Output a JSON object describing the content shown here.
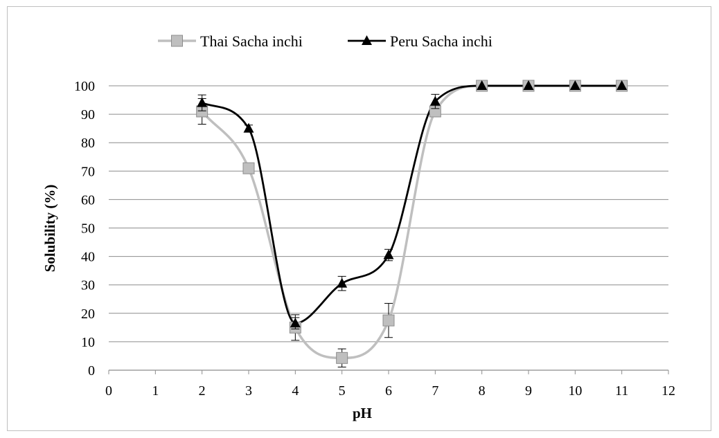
{
  "chart_data": {
    "type": "line",
    "title": "",
    "xlabel": "pH",
    "ylabel": "Solubility  (%)",
    "xlim": [
      0,
      12
    ],
    "ylim": [
      0,
      100
    ],
    "x_ticks": [
      0,
      1,
      2,
      3,
      4,
      5,
      6,
      7,
      8,
      9,
      10,
      11,
      12
    ],
    "y_ticks": [
      0,
      10,
      20,
      30,
      40,
      50,
      60,
      70,
      80,
      90,
      100
    ],
    "grid": "horizontal",
    "legend_position": "top",
    "smoothed": true,
    "series": [
      {
        "name": "Thai Sacha inchi",
        "color": "#bfbfbf",
        "marker": "square",
        "x": [
          2,
          3,
          4,
          5,
          6,
          7,
          8,
          9,
          10,
          11
        ],
        "values": [
          91,
          71,
          15,
          4.3,
          17.5,
          91,
          100,
          100,
          100,
          100
        ],
        "error": [
          4.5,
          0,
          4.5,
          3.2,
          6,
          0,
          0,
          0,
          0,
          0
        ]
      },
      {
        "name": "Peru Sacha inchi",
        "color": "#000000",
        "marker": "triangle",
        "x": [
          2,
          3,
          4,
          5,
          6,
          7,
          8,
          9,
          10,
          11
        ],
        "values": [
          94,
          85,
          16.5,
          30.5,
          40.5,
          94.5,
          100,
          100,
          100,
          100
        ],
        "error": [
          2.8,
          1.2,
          2,
          2.5,
          2,
          2.5,
          0,
          0,
          0,
          0
        ]
      }
    ]
  }
}
